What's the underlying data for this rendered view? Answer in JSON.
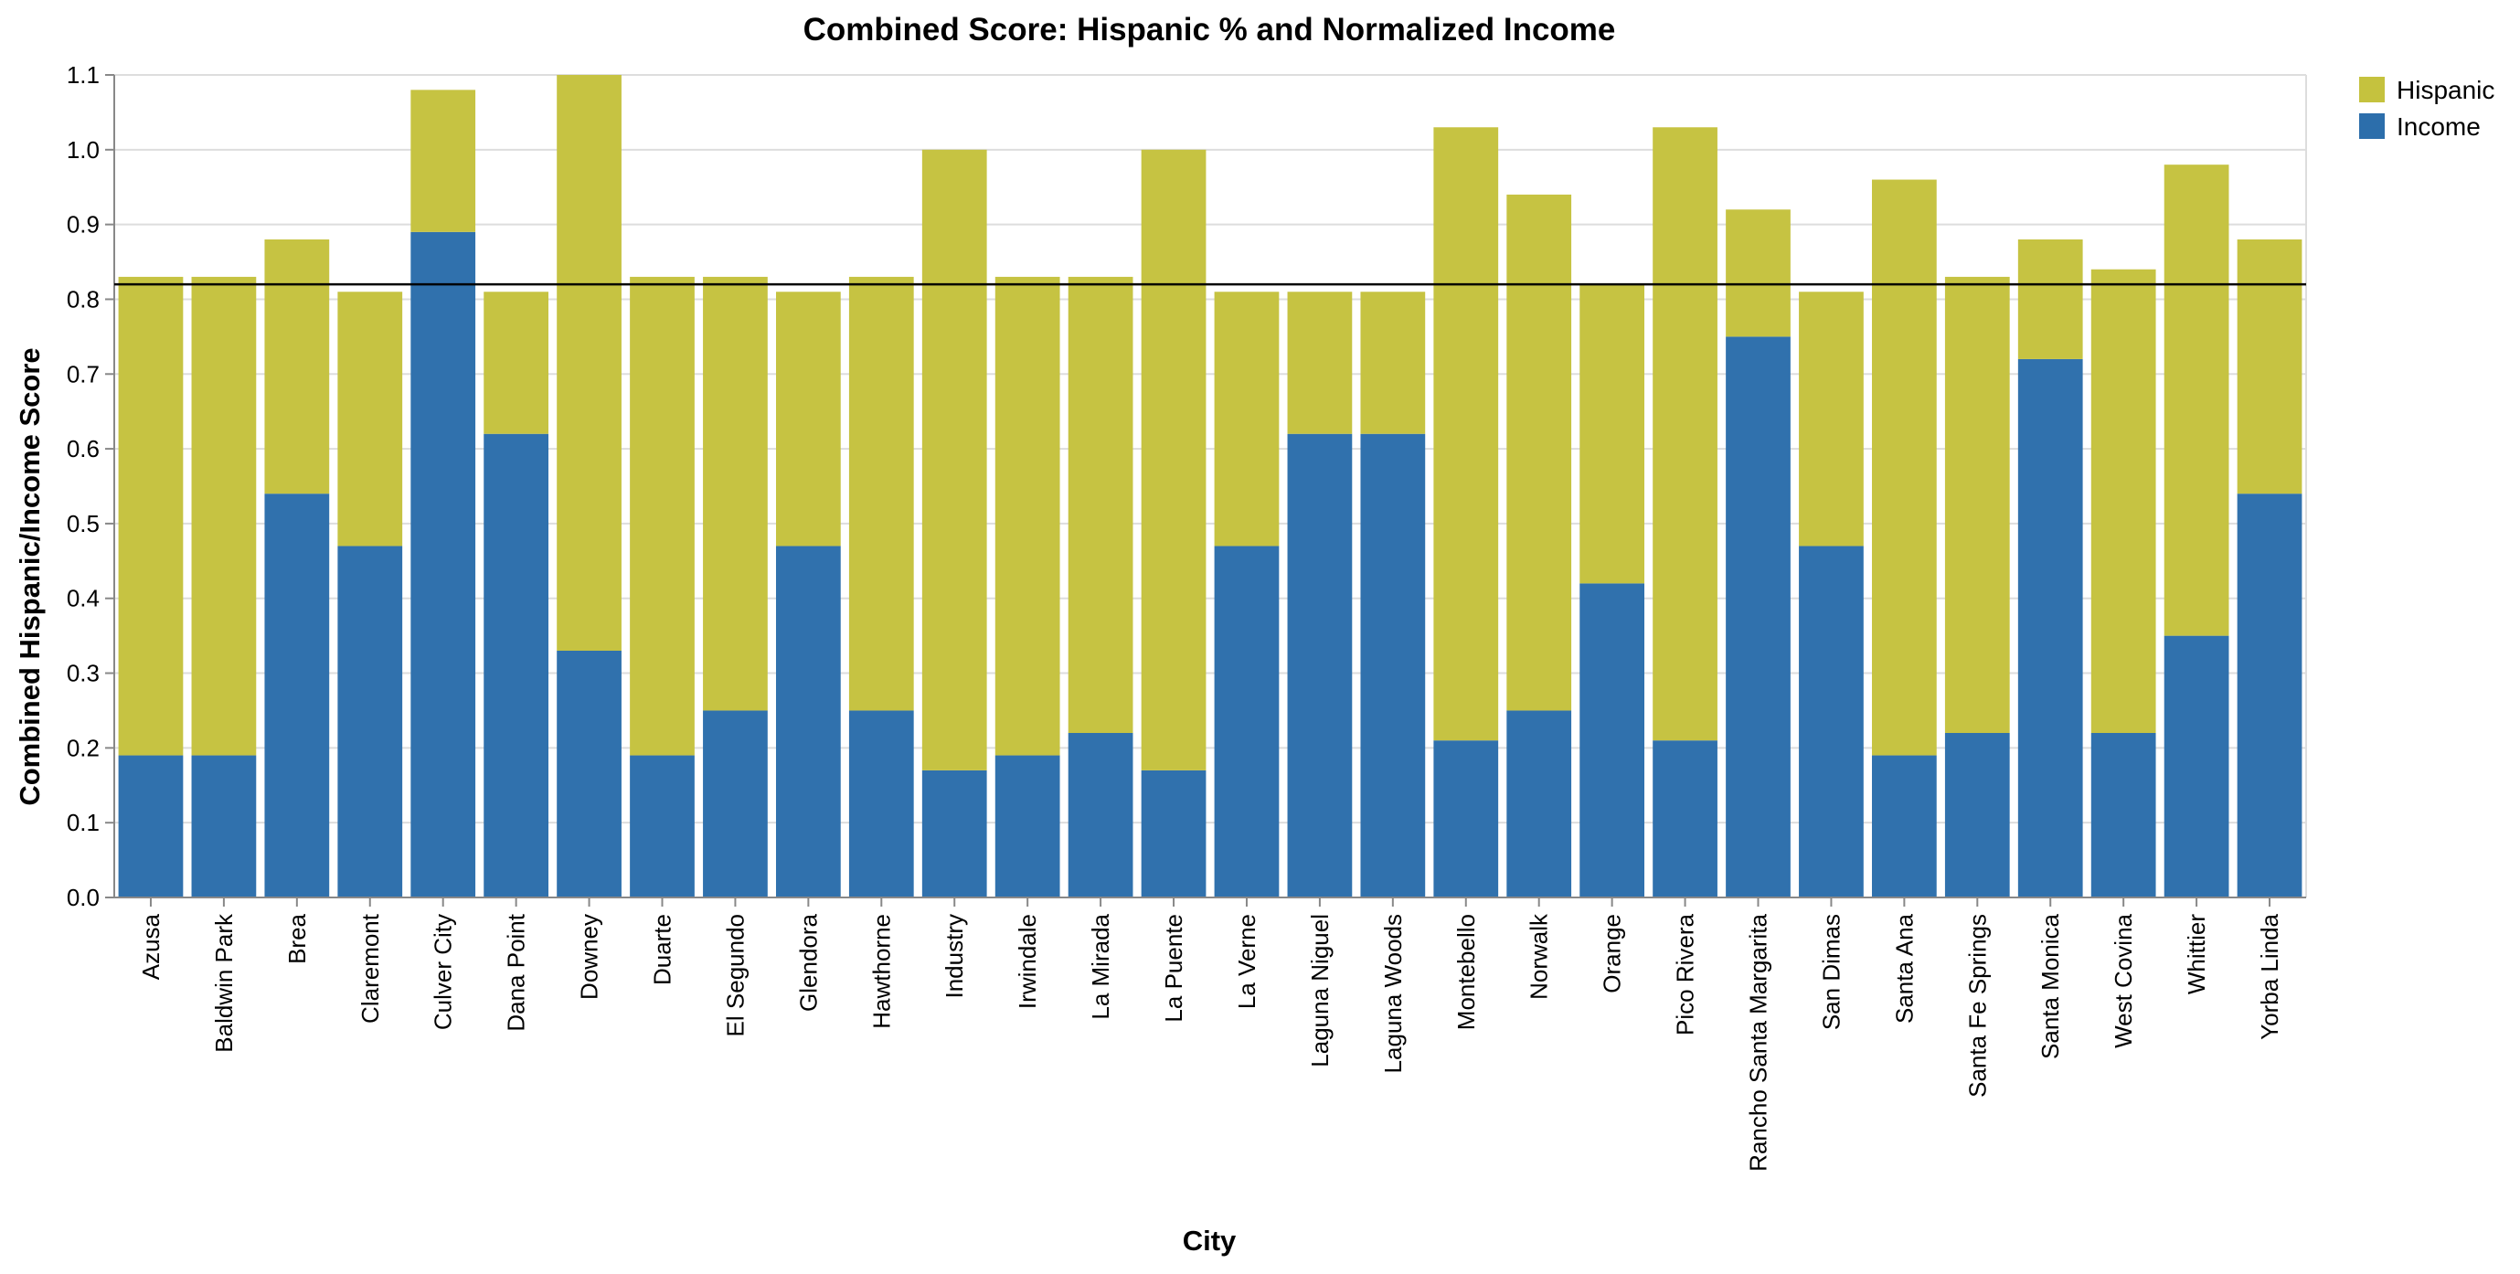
{
  "chart_data": {
    "type": "bar",
    "stacked": true,
    "title": "Combined Score: Hispanic % and Normalized Income",
    "xlabel": "City",
    "ylabel": "Combined Hispanic/Income Score",
    "ylim": [
      0,
      1.1
    ],
    "yticks": [
      "0.0",
      "0.1",
      "0.2",
      "0.3",
      "0.4",
      "0.5",
      "0.6",
      "0.7",
      "0.8",
      "0.9",
      "1.0",
      "1.1"
    ],
    "grid": true,
    "legend_position": "top-right",
    "reference_line": 0.82,
    "categories": [
      "Azusa",
      "Baldwin Park",
      "Brea",
      "Claremont",
      "Culver City",
      "Dana Point",
      "Downey",
      "Duarte",
      "El Segundo",
      "Glendora",
      "Hawthorne",
      "Industry",
      "Irwindale",
      "La Mirada",
      "La Puente",
      "La Verne",
      "Laguna Niguel",
      "Laguna Woods",
      "Montebello",
      "Norwalk",
      "Orange",
      "Pico Rivera",
      "Rancho Santa Margarita",
      "San Dimas",
      "Santa Ana",
      "Santa Fe Springs",
      "Santa Monica",
      "West Covina",
      "Whittier",
      "Yorba Linda"
    ],
    "series": [
      {
        "name": "Income",
        "color": "#2c6eab",
        "values": [
          0.19,
          0.19,
          0.54,
          0.47,
          0.89,
          0.62,
          0.33,
          0.19,
          0.25,
          0.47,
          0.25,
          0.17,
          0.19,
          0.22,
          0.17,
          0.47,
          0.62,
          0.62,
          0.21,
          0.25,
          0.42,
          0.21,
          0.75,
          0.47,
          0.19,
          0.22,
          0.72,
          0.22,
          0.35,
          0.54
        ]
      },
      {
        "name": "Hispanic",
        "color": "#c5c23e",
        "values": [
          0.64,
          0.64,
          0.34,
          0.34,
          0.19,
          0.19,
          0.77,
          0.64,
          0.58,
          0.34,
          0.58,
          0.83,
          0.64,
          0.61,
          0.83,
          0.34,
          0.19,
          0.19,
          0.82,
          0.69,
          0.4,
          0.82,
          0.17,
          0.34,
          0.77,
          0.61,
          0.16,
          0.62,
          0.63,
          0.34
        ]
      }
    ],
    "legend": [
      "Hispanic",
      "Income"
    ]
  }
}
